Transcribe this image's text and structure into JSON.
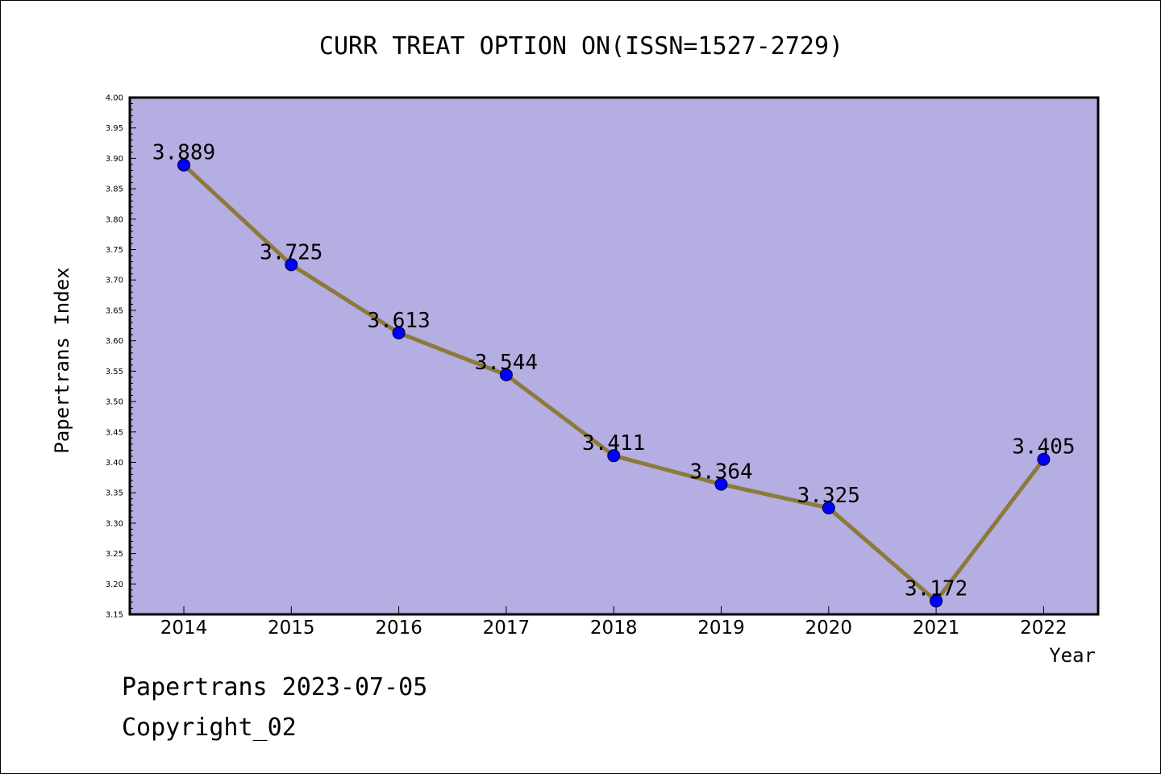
{
  "chart_data": {
    "type": "line",
    "title": "CURR TREAT OPTION ON(ISSN=1527-2729)",
    "xlabel": "Year",
    "ylabel": "Papertrans Index",
    "categories": [
      "2014",
      "2015",
      "2016",
      "2017",
      "2018",
      "2019",
      "2020",
      "2021",
      "2022"
    ],
    "values": [
      3.889,
      3.725,
      3.613,
      3.544,
      3.411,
      3.364,
      3.325,
      3.172,
      3.405
    ],
    "data_labels": [
      "3.889",
      "3.725",
      "3.613",
      "3.544",
      "3.411",
      "3.364",
      "3.325",
      "3.172",
      "3.405"
    ],
    "ylim": [
      3.15,
      4.0
    ],
    "yticks": [
      "3.15",
      "3.20",
      "3.25",
      "3.30",
      "3.35",
      "3.40",
      "3.45",
      "3.50",
      "3.55",
      "3.60",
      "3.65",
      "3.70",
      "3.75",
      "3.80",
      "3.85",
      "3.90",
      "3.95",
      "4.00"
    ],
    "grid": false,
    "colors": {
      "plot_background": "#b4aee2",
      "line": "#8c7a3a",
      "marker": "#0000ff"
    }
  },
  "footer": {
    "line1": "Papertrans 2023-07-05",
    "line2": "Copyright_02"
  }
}
